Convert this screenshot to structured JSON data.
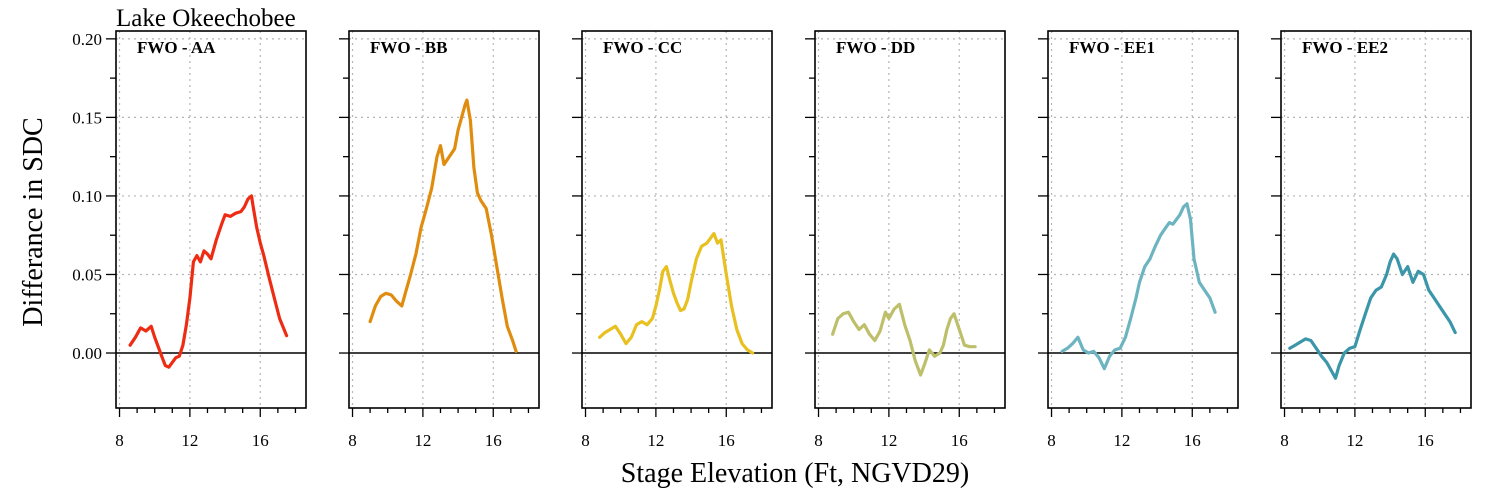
{
  "figure": {
    "title": "Lake Okeechobee",
    "xlabel": "Stage Elevation (Ft, NGVD29)",
    "ylabel": "Differance in SDC"
  },
  "chart_data": {
    "type": "line",
    "title": "Lake Okeechobee",
    "xlabel": "Stage Elevation (Ft, NGVD29)",
    "ylabel": "Differance in SDC",
    "xlim": [
      7.8,
      18.6
    ],
    "ylim": [
      -0.035,
      0.205
    ],
    "x_ticks": [
      8,
      12,
      16
    ],
    "y_ticks": [
      0.0,
      0.05,
      0.1,
      0.15,
      0.2
    ],
    "y_tick_labels": [
      "0.00",
      "0.05",
      "0.10",
      "0.15",
      "0.20"
    ],
    "grid": true,
    "reference_line": 0,
    "panels": [
      {
        "name": "FWO - AA",
        "color": "#EE2C14",
        "x": [
          8.6,
          8.9,
          9.2,
          9.5,
          9.8,
          10.0,
          10.2,
          10.4,
          10.6,
          10.8,
          11.0,
          11.2,
          11.4,
          11.6,
          11.8,
          12.0,
          12.2,
          12.4,
          12.6,
          12.8,
          13.0,
          13.2,
          13.5,
          13.8,
          14.0,
          14.3,
          14.6,
          14.9,
          15.1,
          15.3,
          15.5,
          15.6,
          15.8,
          16.0,
          16.2,
          16.5,
          16.8,
          17.1,
          17.5
        ],
        "y": [
          0.005,
          0.01,
          0.016,
          0.014,
          0.017,
          0.01,
          0.004,
          -0.002,
          -0.008,
          -0.009,
          -0.006,
          -0.003,
          -0.002,
          0.005,
          0.018,
          0.035,
          0.058,
          0.062,
          0.058,
          0.065,
          0.063,
          0.06,
          0.072,
          0.082,
          0.088,
          0.087,
          0.089,
          0.09,
          0.093,
          0.098,
          0.1,
          0.093,
          0.08,
          0.07,
          0.062,
          0.048,
          0.035,
          0.022,
          0.011
        ]
      },
      {
        "name": "FWO - BB",
        "color": "#E08C0E",
        "x": [
          9.0,
          9.3,
          9.6,
          9.9,
          10.2,
          10.5,
          10.8,
          11.0,
          11.3,
          11.6,
          11.9,
          12.2,
          12.5,
          12.8,
          13.0,
          13.2,
          13.5,
          13.8,
          14.0,
          14.2,
          14.4,
          14.5,
          14.7,
          14.9,
          15.1,
          15.3,
          15.6,
          15.9,
          16.2,
          16.5,
          16.8,
          17.1,
          17.3
        ],
        "y": [
          0.02,
          0.03,
          0.036,
          0.038,
          0.037,
          0.033,
          0.03,
          0.038,
          0.05,
          0.063,
          0.08,
          0.092,
          0.105,
          0.125,
          0.132,
          0.12,
          0.125,
          0.13,
          0.142,
          0.15,
          0.158,
          0.161,
          0.148,
          0.118,
          0.102,
          0.097,
          0.092,
          0.075,
          0.055,
          0.035,
          0.017,
          0.008,
          0.001
        ]
      },
      {
        "name": "FWO - CC",
        "color": "#E8C020",
        "x": [
          8.8,
          9.1,
          9.4,
          9.7,
          10.0,
          10.3,
          10.6,
          10.9,
          11.2,
          11.5,
          11.8,
          12.0,
          12.2,
          12.4,
          12.6,
          12.8,
          13.0,
          13.2,
          13.4,
          13.6,
          13.8,
          14.0,
          14.3,
          14.6,
          14.9,
          15.1,
          15.3,
          15.5,
          15.7,
          16.0,
          16.3,
          16.6,
          16.9,
          17.2,
          17.5
        ],
        "y": [
          0.01,
          0.013,
          0.015,
          0.017,
          0.012,
          0.006,
          0.01,
          0.018,
          0.02,
          0.018,
          0.022,
          0.03,
          0.04,
          0.052,
          0.055,
          0.046,
          0.038,
          0.032,
          0.027,
          0.028,
          0.034,
          0.045,
          0.06,
          0.068,
          0.07,
          0.073,
          0.076,
          0.07,
          0.072,
          0.05,
          0.03,
          0.015,
          0.006,
          0.002,
          0.0
        ]
      },
      {
        "name": "FWO - DD",
        "color": "#BDBF6A",
        "x": [
          8.8,
          9.1,
          9.4,
          9.7,
          10.0,
          10.3,
          10.6,
          10.9,
          11.2,
          11.5,
          11.8,
          12.0,
          12.3,
          12.6,
          12.9,
          13.2,
          13.5,
          13.8,
          14.0,
          14.3,
          14.6,
          14.9,
          15.1,
          15.3,
          15.5,
          15.7,
          16.0,
          16.3,
          16.6,
          16.9
        ],
        "y": [
          0.012,
          0.022,
          0.025,
          0.026,
          0.02,
          0.015,
          0.018,
          0.012,
          0.008,
          0.014,
          0.026,
          0.022,
          0.028,
          0.031,
          0.018,
          0.008,
          -0.005,
          -0.014,
          -0.008,
          0.002,
          -0.002,
          0.0,
          0.005,
          0.015,
          0.022,
          0.025,
          0.015,
          0.005,
          0.004,
          0.004
        ]
      },
      {
        "name": "FWO - EE1",
        "color": "#6CB4C0",
        "x": [
          8.6,
          8.9,
          9.2,
          9.5,
          9.8,
          10.1,
          10.4,
          10.7,
          11.0,
          11.3,
          11.6,
          11.9,
          12.2,
          12.5,
          12.8,
          13.0,
          13.3,
          13.6,
          13.9,
          14.2,
          14.5,
          14.7,
          14.9,
          15.1,
          15.3,
          15.5,
          15.7,
          15.9,
          16.1,
          16.4,
          16.7,
          17.0,
          17.3
        ],
        "y": [
          0.001,
          0.003,
          0.006,
          0.01,
          0.002,
          0.0,
          0.001,
          -0.003,
          -0.01,
          -0.002,
          0.002,
          0.003,
          0.01,
          0.022,
          0.035,
          0.045,
          0.055,
          0.06,
          0.068,
          0.075,
          0.08,
          0.083,
          0.082,
          0.085,
          0.088,
          0.093,
          0.095,
          0.085,
          0.06,
          0.045,
          0.04,
          0.035,
          0.026
        ]
      },
      {
        "name": "FWO - EE2",
        "color": "#3C96AA",
        "x": [
          8.3,
          8.6,
          8.9,
          9.2,
          9.5,
          9.8,
          10.1,
          10.4,
          10.7,
          10.9,
          11.1,
          11.4,
          11.7,
          12.0,
          12.3,
          12.6,
          12.9,
          13.2,
          13.5,
          13.8,
          14.0,
          14.2,
          14.4,
          14.7,
          15.0,
          15.3,
          15.6,
          15.9,
          16.2,
          16.5,
          16.8,
          17.1,
          17.4,
          17.7
        ],
        "y": [
          0.003,
          0.005,
          0.007,
          0.009,
          0.008,
          0.003,
          -0.002,
          -0.006,
          -0.012,
          -0.016,
          -0.008,
          0.0,
          0.003,
          0.004,
          0.015,
          0.025,
          0.035,
          0.04,
          0.042,
          0.05,
          0.058,
          0.063,
          0.06,
          0.05,
          0.055,
          0.045,
          0.052,
          0.05,
          0.04,
          0.035,
          0.03,
          0.025,
          0.02,
          0.013
        ]
      }
    ]
  }
}
